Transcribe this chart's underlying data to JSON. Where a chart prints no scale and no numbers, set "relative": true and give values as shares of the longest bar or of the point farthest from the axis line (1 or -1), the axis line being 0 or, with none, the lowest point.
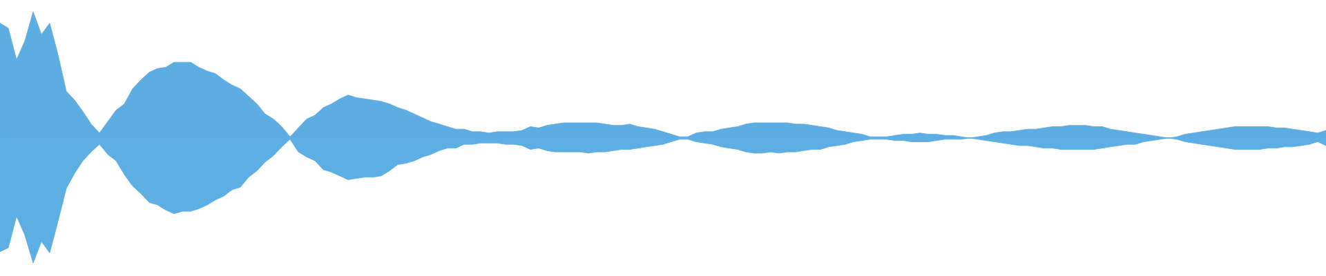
{
  "chart_data": {
    "type": "area",
    "relative": true,
    "categories": [
      null,
      null,
      null,
      null,
      null,
      null,
      null,
      null,
      null,
      null,
      null,
      null,
      null,
      null,
      null,
      null,
      null,
      null,
      null,
      null,
      null,
      null,
      null,
      null,
      null,
      null,
      null,
      null,
      null,
      null,
      null,
      null,
      null,
      null,
      null,
      null,
      null,
      null,
      null,
      null,
      null,
      null,
      null,
      null,
      null,
      null,
      null,
      null,
      null,
      null,
      null,
      null,
      null,
      null,
      null,
      null,
      null,
      null,
      null,
      null,
      null,
      null,
      null,
      null,
      null,
      null,
      null,
      null,
      null,
      null,
      null,
      null,
      null,
      null,
      null,
      null,
      null,
      null,
      null,
      null,
      null,
      null,
      null,
      null,
      null,
      null,
      null,
      null,
      null,
      null,
      null,
      null,
      null,
      null,
      null,
      null,
      null,
      null,
      null,
      null,
      null,
      null,
      null,
      null,
      null,
      null,
      null,
      null,
      null,
      null,
      null,
      null,
      null,
      null,
      null,
      null,
      null,
      null,
      null,
      null,
      null,
      null,
      null,
      null,
      null,
      null,
      null,
      null,
      null,
      null,
      null,
      null,
      null,
      null,
      null,
      null,
      null,
      null,
      null,
      null,
      null,
      null,
      null,
      null,
      null,
      null,
      null,
      null,
      null,
      null,
      null,
      null,
      null,
      null,
      null,
      null,
      null,
      null,
      null,
      null,
      null
    ],
    "series": [
      {
        "color": "#5dade2",
        "values": [
          0.91,
          0.87,
          0.62,
          0.77,
          1.0,
          0.82,
          0.91,
          0.66,
          0.37,
          0.3,
          0.21,
          0.11,
          0.04,
          0.13,
          0.22,
          0.27,
          0.39,
          0.46,
          0.52,
          0.55,
          0.56,
          0.6,
          0.6,
          0.6,
          0.56,
          0.53,
          0.51,
          0.46,
          0.42,
          0.39,
          0.33,
          0.27,
          0.19,
          0.15,
          0.09,
          0.01,
          0.08,
          0.15,
          0.18,
          0.24,
          0.27,
          0.31,
          0.34,
          0.32,
          0.31,
          0.3,
          0.29,
          0.27,
          0.24,
          0.22,
          0.19,
          0.16,
          0.13,
          0.11,
          0.09,
          0.07,
          0.07,
          0.05,
          0.05,
          0.04,
          0.05,
          0.05,
          0.05,
          0.06,
          0.09,
          0.08,
          0.1,
          0.11,
          0.12,
          0.12,
          0.12,
          0.12,
          0.12,
          0.11,
          0.1,
          0.1,
          0.11,
          0.09,
          0.08,
          0.07,
          0.05,
          0.03,
          0.01,
          0.01,
          0.04,
          0.05,
          0.05,
          0.07,
          0.08,
          0.09,
          0.11,
          0.12,
          0.12,
          0.12,
          0.12,
          0.12,
          0.11,
          0.11,
          0.1,
          0.09,
          0.08,
          0.06,
          0.05,
          0.04,
          0.03,
          0.01,
          0.01,
          0.01,
          0.02,
          0.03,
          0.03,
          0.04,
          0.03,
          0.03,
          0.02,
          0.02,
          0.01,
          0.0,
          0.01,
          0.02,
          0.04,
          0.05,
          0.05,
          0.06,
          0.07,
          0.07,
          0.08,
          0.09,
          0.09,
          0.1,
          0.1,
          0.1,
          0.09,
          0.09,
          0.07,
          0.06,
          0.05,
          0.04,
          0.03,
          0.02,
          0.01,
          0.0,
          0.01,
          0.03,
          0.04,
          0.05,
          0.06,
          0.07,
          0.08,
          0.09,
          0.09,
          0.09,
          0.09,
          0.09,
          0.08,
          0.08,
          0.07,
          0.06,
          0.05,
          0.04,
          0.06
        ]
      },
      {
        "color": "#5caee3",
        "values": [
          -0.9,
          -0.87,
          -0.62,
          -0.77,
          -0.99,
          -0.82,
          -0.91,
          -0.66,
          -0.4,
          -0.28,
          -0.18,
          -0.11,
          -0.05,
          -0.13,
          -0.18,
          -0.29,
          -0.38,
          -0.44,
          -0.51,
          -0.53,
          -0.57,
          -0.6,
          -0.58,
          -0.58,
          -0.56,
          -0.53,
          -0.49,
          -0.46,
          -0.41,
          -0.39,
          -0.31,
          -0.26,
          -0.19,
          -0.14,
          -0.07,
          -0.01,
          -0.11,
          -0.15,
          -0.18,
          -0.25,
          -0.27,
          -0.3,
          -0.33,
          -0.32,
          -0.31,
          -0.31,
          -0.3,
          -0.26,
          -0.21,
          -0.2,
          -0.18,
          -0.15,
          -0.13,
          -0.1,
          -0.08,
          -0.08,
          -0.05,
          -0.05,
          -0.04,
          -0.04,
          -0.04,
          -0.05,
          -0.05,
          -0.06,
          -0.09,
          -0.08,
          -0.1,
          -0.11,
          -0.11,
          -0.11,
          -0.11,
          -0.12,
          -0.11,
          -0.11,
          -0.1,
          -0.09,
          -0.09,
          -0.08,
          -0.07,
          -0.06,
          -0.05,
          -0.03,
          -0.01,
          -0.01,
          -0.03,
          -0.04,
          -0.05,
          -0.07,
          -0.08,
          -0.09,
          -0.11,
          -0.12,
          -0.12,
          -0.11,
          -0.12,
          -0.11,
          -0.11,
          -0.1,
          -0.09,
          -0.09,
          -0.07,
          -0.06,
          -0.05,
          -0.03,
          -0.02,
          -0.01,
          -0.01,
          -0.01,
          -0.02,
          -0.02,
          -0.03,
          -0.03,
          -0.03,
          -0.02,
          -0.01,
          -0.01,
          -0.01,
          0.0,
          -0.01,
          -0.02,
          -0.03,
          -0.04,
          -0.05,
          -0.06,
          -0.06,
          -0.07,
          -0.08,
          -0.08,
          -0.09,
          -0.09,
          -0.09,
          -0.09,
          -0.09,
          -0.08,
          -0.07,
          -0.06,
          -0.05,
          -0.05,
          -0.03,
          -0.02,
          -0.01,
          0.0,
          -0.01,
          -0.03,
          -0.04,
          -0.05,
          -0.06,
          -0.07,
          -0.08,
          -0.09,
          -0.09,
          -0.09,
          -0.09,
          -0.08,
          -0.08,
          -0.07,
          -0.07,
          -0.06,
          -0.05,
          -0.03,
          -0.06
        ]
      }
    ]
  }
}
